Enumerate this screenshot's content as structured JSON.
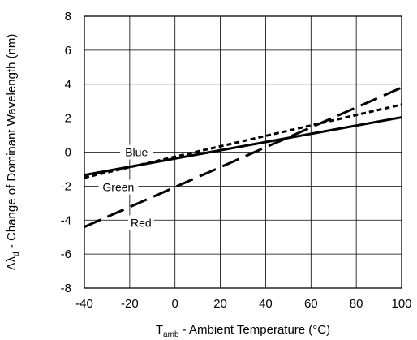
{
  "chart_data": {
    "type": "line",
    "title": "",
    "xlabel": {
      "main": "T",
      "sub": "amb",
      "rest": " - Ambient Temperature (°C)"
    },
    "ylabel": {
      "main": "Δλ",
      "sub": "d",
      "rest": " - Change of Dominant Wavelength (nm)"
    },
    "xlim": [
      -40,
      100
    ],
    "ylim": [
      -8,
      8
    ],
    "xticks": [
      -40,
      -20,
      0,
      20,
      40,
      60,
      80,
      100
    ],
    "yticks": [
      -8,
      -6,
      -4,
      -2,
      0,
      2,
      4,
      6,
      8
    ],
    "xtick_labels": [
      "-40",
      "-20",
      "0",
      "20",
      "40",
      "60",
      "80",
      "100"
    ],
    "ytick_labels": [
      "-8",
      "-6",
      "-4",
      "-2",
      "0",
      "2",
      "4",
      "6",
      "8"
    ],
    "grid": true,
    "legend": "inline labels",
    "series": [
      {
        "name": "Blue",
        "style": "solid",
        "x": [
          -40,
          100
        ],
        "y": [
          -1.35,
          2.05
        ]
      },
      {
        "name": "Green",
        "style": "short-dash",
        "x": [
          -40,
          100
        ],
        "y": [
          -1.5,
          2.8
        ]
      },
      {
        "name": "Red",
        "style": "long-dash",
        "x": [
          -40,
          100
        ],
        "y": [
          -4.4,
          3.8
        ]
      }
    ],
    "annotations": [
      {
        "text": "Blue",
        "x": -17,
        "y": 0
      },
      {
        "text": "Green",
        "x": -25,
        "y": -2.05
      },
      {
        "text": "Red",
        "x": -15,
        "y": -4.15
      }
    ]
  }
}
